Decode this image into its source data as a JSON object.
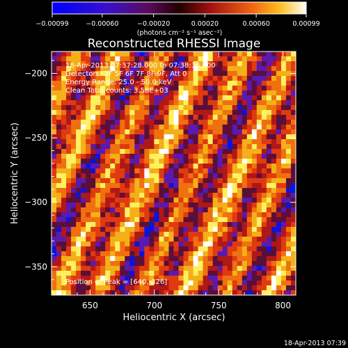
{
  "chart_data": {
    "type": "heatmap",
    "title": "Reconstructed RHESSI Image",
    "xlabel": "Heliocentric X (arcsec)",
    "ylabel": "Heliocentric Y (arcsec)",
    "xlim": [
      620,
      810
    ],
    "ylim": [
      -372,
      -183
    ],
    "x_ticks": [
      {
        "value": 650,
        "label": "650"
      },
      {
        "value": 700,
        "label": "700"
      },
      {
        "value": 750,
        "label": "750"
      },
      {
        "value": 800,
        "label": "800"
      }
    ],
    "y_ticks": [
      {
        "value": -200,
        "label": "−200"
      },
      {
        "value": -250,
        "label": "−250"
      },
      {
        "value": -300,
        "label": "−300"
      },
      {
        "value": -350,
        "label": "−350"
      }
    ],
    "colorbar": {
      "range": [
        -0.00099,
        0.00099
      ],
      "ticks": [
        {
          "value": -0.00099,
          "label": "−0.00099"
        },
        {
          "value": -0.0006,
          "label": "−0.00060"
        },
        {
          "value": -0.0002,
          "label": "−0.00020"
        },
        {
          "value": 0.0002,
          "label": "0.00020"
        },
        {
          "value": 0.0006,
          "label": "0.00060"
        },
        {
          "value": 0.00099,
          "label": "0.00099"
        }
      ],
      "unit_label": "(photons cm⁻² s⁻¹ asec⁻²)"
    },
    "annotations": [
      "18-Apr-2013 07:37:28.000 to 07:38:36.000",
      "Detectors: 3F 5F 6F 7F 8F 9F, Att 0",
      "Energy Range: 25.0 - 50.0 keV",
      "Clean    Total counts: 3.58E+03"
    ],
    "peak_label": "Position of Peak = [640,-326]",
    "pattern": "diagonal stripes (lower-left to upper-right), alternating bright yellow/orange and dark blue/purple",
    "colormap": [
      "#0a14e0",
      "#5a1ab0",
      "#5a0f3a",
      "#b01818",
      "#e03a10",
      "#f07010",
      "#f4b018",
      "#fff060",
      "#ffffff"
    ]
  },
  "footer_timestamp": "18-Apr-2013 07:39"
}
